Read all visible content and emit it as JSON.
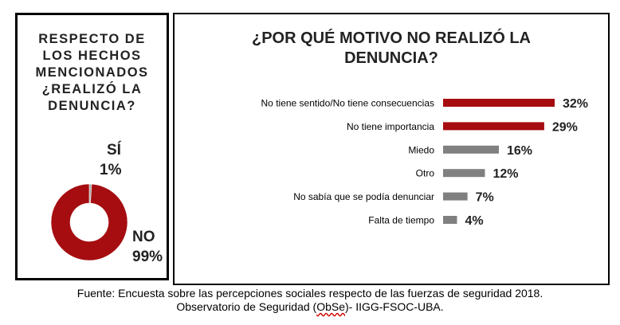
{
  "left_panel": {
    "title_lines": [
      "RESPECTO DE",
      "LOS HECHOS",
      "MENCIONADOS",
      "¿REALIZÓ LA",
      "DENUNCIA?"
    ]
  },
  "right_panel": {
    "title_lines": [
      "¿POR QUÉ MOTIVO NO REALIZÓ LA",
      "DENUNCIA?"
    ]
  },
  "colors": {
    "red": "#A50D10",
    "gray": "#808080",
    "donut_si": "#A6A6A6"
  },
  "chart_data": [
    {
      "type": "pie",
      "variant": "donut",
      "labels": [
        "SÍ",
        "NO"
      ],
      "values": [
        1,
        99
      ],
      "value_labels": [
        "1%",
        "99%"
      ]
    },
    {
      "type": "bar",
      "orientation": "horizontal",
      "categories": [
        "No tiene sentido/No tiene consecuencias",
        "No tiene importancia",
        "Miedo",
        "Otro",
        "No sabía que se podía denunciar",
        "Falta de tiempo"
      ],
      "values": [
        32,
        29,
        16,
        12,
        7,
        4
      ],
      "value_labels": [
        "32%",
        "29%",
        "16%",
        "12%",
        "7%",
        "4%"
      ],
      "bar_colors": [
        "red",
        "red",
        "gray",
        "gray",
        "gray",
        "gray"
      ],
      "xlim": [
        0,
        35
      ],
      "grid": false
    }
  ],
  "source": {
    "line1": "Fuente: Encuesta sobre las percepciones sociales respecto de las fuerzas de seguridad 2018.",
    "line2_pre": "Observatorio de Seguridad (",
    "line2_abbr": "ObSe",
    "line2_post": ")- IIGG-FSOC-UBA."
  }
}
